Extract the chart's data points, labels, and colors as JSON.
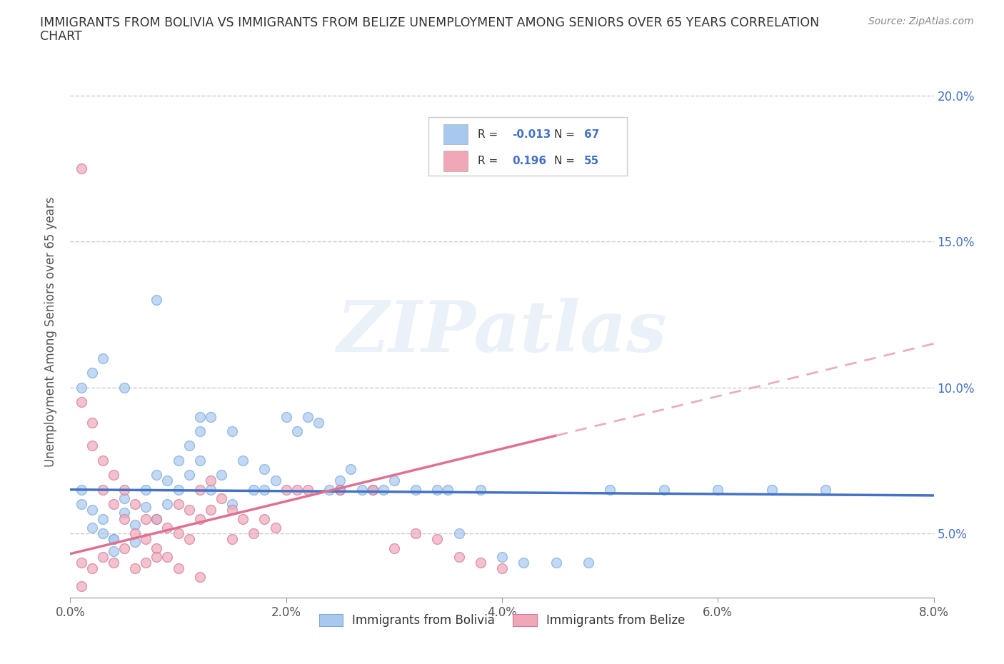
{
  "title_line1": "IMMIGRANTS FROM BOLIVIA VS IMMIGRANTS FROM BELIZE UNEMPLOYMENT AMONG SENIORS OVER 65 YEARS CORRELATION",
  "title_line2": "CHART",
  "source": "Source: ZipAtlas.com",
  "ylabel": "Unemployment Among Seniors over 65 years",
  "xlim": [
    0.0,
    0.08
  ],
  "ylim": [
    0.028,
    0.21
  ],
  "watermark": "ZIPatlas",
  "bolivia_color": "#a8c8f0",
  "bolivia_edge": "#7aaad0",
  "belize_color": "#f0a8b8",
  "belize_edge": "#d07898",
  "trendline_bolivia_color": "#4472c4",
  "trendline_belize_color": "#e07090",
  "trendline_dashed_color": "#e8b0b8",
  "bolivia_R": -0.013,
  "bolivia_N": 67,
  "belize_R": 0.196,
  "belize_N": 55,
  "ytick_vals": [
    0.05,
    0.1,
    0.15,
    0.2
  ],
  "ytick_labels": [
    "5.0%",
    "10.0%",
    "15.0%",
    "20.0%"
  ],
  "xtick_vals": [
    0.0,
    0.02,
    0.04,
    0.06,
    0.08
  ],
  "xtick_labels": [
    "0.0%",
    "2.0%",
    "4.0%",
    "6.0%",
    "8.0%"
  ],
  "bolivia_x": [
    0.001,
    0.001,
    0.002,
    0.002,
    0.003,
    0.003,
    0.004,
    0.004,
    0.005,
    0.005,
    0.006,
    0.006,
    0.007,
    0.007,
    0.008,
    0.008,
    0.009,
    0.009,
    0.01,
    0.01,
    0.011,
    0.011,
    0.012,
    0.012,
    0.013,
    0.013,
    0.014,
    0.015,
    0.015,
    0.016,
    0.017,
    0.018,
    0.019,
    0.02,
    0.021,
    0.022,
    0.023,
    0.024,
    0.025,
    0.026,
    0.027,
    0.028,
    0.029,
    0.03,
    0.032,
    0.034,
    0.036,
    0.038,
    0.04,
    0.042,
    0.045,
    0.048,
    0.05,
    0.055,
    0.06,
    0.065,
    0.07,
    0.001,
    0.002,
    0.003,
    0.004,
    0.005,
    0.008,
    0.012,
    0.018,
    0.025,
    0.035
  ],
  "bolivia_y": [
    0.065,
    0.06,
    0.058,
    0.052,
    0.055,
    0.05,
    0.048,
    0.044,
    0.062,
    0.057,
    0.053,
    0.047,
    0.065,
    0.059,
    0.07,
    0.055,
    0.068,
    0.06,
    0.075,
    0.065,
    0.08,
    0.07,
    0.085,
    0.075,
    0.09,
    0.065,
    0.07,
    0.085,
    0.06,
    0.075,
    0.065,
    0.072,
    0.068,
    0.09,
    0.085,
    0.09,
    0.088,
    0.065,
    0.068,
    0.072,
    0.065,
    0.065,
    0.065,
    0.068,
    0.065,
    0.065,
    0.05,
    0.065,
    0.042,
    0.04,
    0.04,
    0.04,
    0.065,
    0.065,
    0.065,
    0.065,
    0.065,
    0.1,
    0.105,
    0.11,
    0.048,
    0.1,
    0.13,
    0.09,
    0.065,
    0.065,
    0.065
  ],
  "belize_x": [
    0.001,
    0.001,
    0.002,
    0.002,
    0.003,
    0.003,
    0.004,
    0.004,
    0.005,
    0.005,
    0.006,
    0.006,
    0.007,
    0.007,
    0.008,
    0.008,
    0.009,
    0.009,
    0.01,
    0.01,
    0.011,
    0.011,
    0.012,
    0.012,
    0.013,
    0.013,
    0.014,
    0.015,
    0.015,
    0.016,
    0.017,
    0.018,
    0.019,
    0.02,
    0.021,
    0.022,
    0.025,
    0.028,
    0.03,
    0.032,
    0.034,
    0.036,
    0.038,
    0.04,
    0.001,
    0.002,
    0.003,
    0.004,
    0.005,
    0.006,
    0.007,
    0.008,
    0.01,
    0.012,
    0.001
  ],
  "belize_y": [
    0.175,
    0.095,
    0.088,
    0.08,
    0.075,
    0.065,
    0.07,
    0.06,
    0.065,
    0.055,
    0.06,
    0.05,
    0.055,
    0.048,
    0.055,
    0.045,
    0.052,
    0.042,
    0.06,
    0.05,
    0.058,
    0.048,
    0.065,
    0.055,
    0.068,
    0.058,
    0.062,
    0.058,
    0.048,
    0.055,
    0.05,
    0.055,
    0.052,
    0.065,
    0.065,
    0.065,
    0.065,
    0.065,
    0.045,
    0.05,
    0.048,
    0.042,
    0.04,
    0.038,
    0.04,
    0.038,
    0.042,
    0.04,
    0.045,
    0.038,
    0.04,
    0.042,
    0.038,
    0.035,
    0.032
  ]
}
